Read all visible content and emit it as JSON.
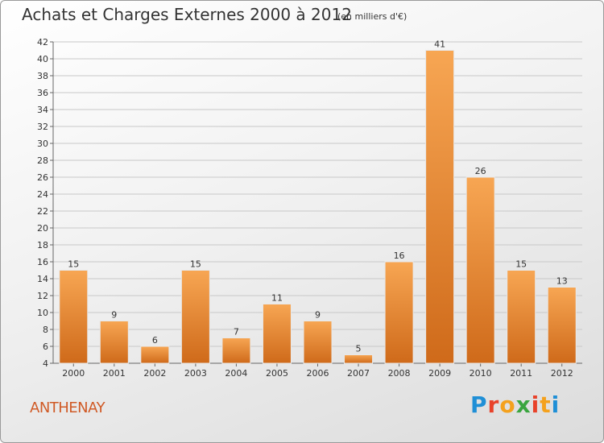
{
  "title": "Achats et Charges Externes 2000 à 2012",
  "subtitle": "(en milliers d'€)",
  "town": "ANTHENAY",
  "logo": {
    "letters": [
      "P",
      "r",
      "o",
      "x",
      "i",
      "t",
      "i"
    ],
    "colors": [
      "#1f8fd6",
      "#e8422a",
      "#f4a11d",
      "#3aa53f",
      "#e8422a",
      "#f4a11d",
      "#1f8fd6"
    ]
  },
  "colors": {
    "bar_top": "#f7a653",
    "bar_bottom": "#cf6a1a",
    "text": "#333333",
    "town": "#d05a26"
  },
  "chart_data": {
    "type": "bar",
    "categories": [
      "2000",
      "2001",
      "2002",
      "2003",
      "2004",
      "2005",
      "2006",
      "2007",
      "2008",
      "2009",
      "2010",
      "2011",
      "2012"
    ],
    "values": [
      15,
      9,
      6,
      15,
      7,
      11,
      9,
      5,
      16,
      41,
      26,
      15,
      13
    ],
    "title": "Achats et Charges Externes 2000 à 2012",
    "xlabel": "",
    "ylabel": "",
    "ylim": [
      4,
      42
    ],
    "yticks": [
      4,
      6,
      8,
      10,
      12,
      14,
      16,
      18,
      20,
      22,
      24,
      26,
      28,
      30,
      32,
      34,
      36,
      38,
      40,
      42
    ],
    "grid": true,
    "data_labels": true
  }
}
